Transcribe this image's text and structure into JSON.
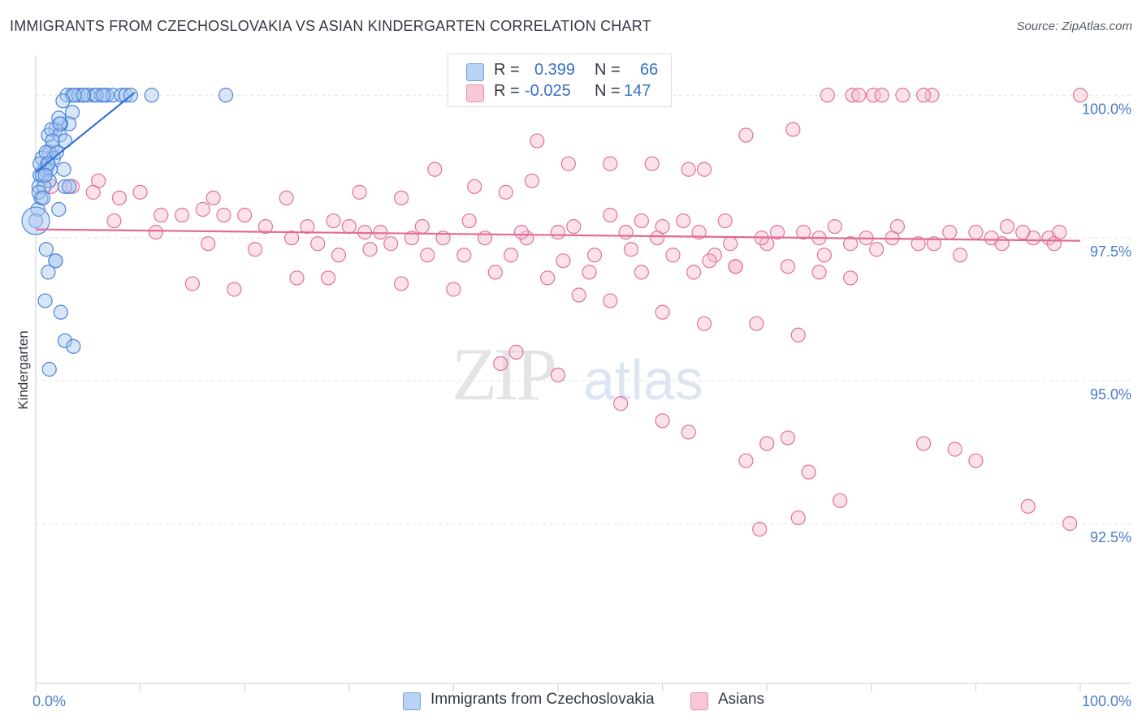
{
  "title": "IMMIGRANTS FROM CZECHOSLOVAKIA VS ASIAN KINDERGARTEN CORRELATION CHART",
  "source": "Source: ZipAtlas.com",
  "watermark": {
    "zip": "ZIP",
    "atlas": "atlas"
  },
  "legend": {
    "r_label": "R =",
    "n_label": "N =",
    "rows": [
      {
        "r": "0.399",
        "n": "66"
      },
      {
        "r": "-0.025",
        "n": "147"
      }
    ]
  },
  "chart_data": {
    "type": "scatter",
    "title": "IMMIGRANTS FROM CZECHOSLOVAKIA VS ASIAN KINDERGARTEN CORRELATION CHART",
    "xlabel": "",
    "ylabel": "Kindergarten",
    "xlim": [
      0,
      100
    ],
    "ylim": [
      89.7,
      100.7
    ],
    "x_tick_labels": [
      {
        "value": 0,
        "label": "0.0%"
      },
      {
        "value": 100,
        "label": "100.0%"
      }
    ],
    "y_ticks": [
      {
        "value": 100,
        "label": "100.0%"
      },
      {
        "value": 97.5,
        "label": "97.5%"
      },
      {
        "value": 95,
        "label": "95.0%"
      },
      {
        "value": 92.5,
        "label": "92.5%"
      }
    ],
    "x_minor_ticks": [
      0,
      10,
      20,
      30,
      40,
      50,
      60,
      70,
      80,
      90,
      100
    ],
    "grid": true,
    "colors": {
      "blue": "#4a84d8",
      "blue_fill": "#a9c8f0",
      "pink": "#e0729a",
      "pink_fill": "#f6bdd0",
      "trend_blue": "#3173d6",
      "trend_pink": "#e36a96",
      "grid": "#dde1e6",
      "axis_text": "#4a7cc9"
    },
    "series": [
      {
        "name": "Immigrants from Czechoslovakia",
        "r": 0.399,
        "n": 66,
        "trend": {
          "x": [
            0,
            9.5
          ],
          "y": [
            98.65,
            100.05
          ]
        },
        "points": [
          [
            3.0,
            100.0
          ],
          [
            3.5,
            100.0
          ],
          [
            4.1,
            100.0
          ],
          [
            4.5,
            100.0
          ],
          [
            5.0,
            100.0
          ],
          [
            5.6,
            100.0
          ],
          [
            6.3,
            100.0
          ],
          [
            6.8,
            100.0
          ],
          [
            7.4,
            100.0
          ],
          [
            8.2,
            100.0
          ],
          [
            8.6,
            100.0
          ],
          [
            9.1,
            100.0
          ],
          [
            11.1,
            100.0
          ],
          [
            18.2,
            100.0
          ],
          [
            5.8,
            100.0
          ],
          [
            6.5,
            100.0
          ],
          [
            4.6,
            100.0
          ],
          [
            3.7,
            100.0
          ],
          [
            2.6,
            99.9
          ],
          [
            3.5,
            99.7
          ],
          [
            3.2,
            99.5
          ],
          [
            2.4,
            99.5
          ],
          [
            1.9,
            99.4
          ],
          [
            1.2,
            99.3
          ],
          [
            1.5,
            99.4
          ],
          [
            2.3,
            99.3
          ],
          [
            2.8,
            99.2
          ],
          [
            1.6,
            99.1
          ],
          [
            1.3,
            99.0
          ],
          [
            0.6,
            98.9
          ],
          [
            1.1,
            98.8
          ],
          [
            0.8,
            98.7
          ],
          [
            0.4,
            98.6
          ],
          [
            0.3,
            98.4
          ],
          [
            1.0,
            98.7
          ],
          [
            2.7,
            98.7
          ],
          [
            2.8,
            98.4
          ],
          [
            0.5,
            98.2
          ],
          [
            0.2,
            98.0
          ],
          [
            0.0,
            97.8
          ],
          [
            2.2,
            98.0
          ],
          [
            1.0,
            97.3
          ],
          [
            1.9,
            97.1
          ],
          [
            1.2,
            96.9
          ],
          [
            1.9,
            97.1
          ],
          [
            0.9,
            96.4
          ],
          [
            2.4,
            96.2
          ],
          [
            2.8,
            95.7
          ],
          [
            3.6,
            95.6
          ],
          [
            1.3,
            95.2
          ],
          [
            0.6,
            98.6
          ],
          [
            1.4,
            98.7
          ],
          [
            1.7,
            98.9
          ],
          [
            2.2,
            99.6
          ],
          [
            1.0,
            99.0
          ],
          [
            0.4,
            98.8
          ],
          [
            2.3,
            99.5
          ],
          [
            1.3,
            98.5
          ],
          [
            0.8,
            98.4
          ],
          [
            3.2,
            98.4
          ],
          [
            2.0,
            99.0
          ],
          [
            1.6,
            99.2
          ],
          [
            0.3,
            98.3
          ],
          [
            1.2,
            98.8
          ],
          [
            0.9,
            98.6
          ],
          [
            0.7,
            98.2
          ]
        ]
      },
      {
        "name": "Asians",
        "r": -0.025,
        "n": 147,
        "trend": {
          "x": [
            0,
            100
          ],
          "y": [
            97.65,
            97.45
          ]
        },
        "points": [
          [
            75.8,
            100.0
          ],
          [
            78.2,
            100.0
          ],
          [
            80.2,
            100.0
          ],
          [
            81.0,
            100.0
          ],
          [
            83.0,
            100.0
          ],
          [
            85.8,
            100.0
          ],
          [
            85.0,
            100.0
          ],
          [
            100.0,
            100.0
          ],
          [
            78.8,
            100.0
          ],
          [
            72.5,
            99.4
          ],
          [
            68.0,
            99.3
          ],
          [
            48.0,
            99.2
          ],
          [
            51.0,
            98.8
          ],
          [
            55.0,
            98.8
          ],
          [
            59.0,
            98.8
          ],
          [
            62.5,
            98.7
          ],
          [
            64.0,
            98.7
          ],
          [
            47.5,
            98.5
          ],
          [
            42.0,
            98.4
          ],
          [
            45.0,
            98.3
          ],
          [
            38.2,
            98.7
          ],
          [
            35.0,
            98.2
          ],
          [
            31.0,
            98.3
          ],
          [
            24.0,
            98.2
          ],
          [
            17.0,
            98.2
          ],
          [
            10.0,
            98.3
          ],
          [
            6.0,
            98.5
          ],
          [
            3.5,
            98.4
          ],
          [
            5.5,
            98.3
          ],
          [
            1.5,
            98.4
          ],
          [
            8.0,
            98.2
          ],
          [
            7.5,
            97.8
          ],
          [
            12.0,
            97.9
          ],
          [
            14.0,
            97.9
          ],
          [
            16.0,
            98.0
          ],
          [
            18.0,
            97.9
          ],
          [
            20.0,
            97.9
          ],
          [
            22.0,
            97.7
          ],
          [
            26.0,
            97.7
          ],
          [
            28.5,
            97.8
          ],
          [
            30.0,
            97.7
          ],
          [
            33.0,
            97.6
          ],
          [
            36.0,
            97.5
          ],
          [
            39.0,
            97.5
          ],
          [
            43.0,
            97.5
          ],
          [
            47.0,
            97.5
          ],
          [
            50.0,
            97.6
          ],
          [
            55.0,
            97.9
          ],
          [
            58.0,
            97.8
          ],
          [
            60.0,
            97.7
          ],
          [
            62.0,
            97.8
          ],
          [
            66.0,
            97.8
          ],
          [
            71.0,
            97.6
          ],
          [
            75.0,
            97.5
          ],
          [
            78.0,
            97.4
          ],
          [
            82.0,
            97.5
          ],
          [
            86.0,
            97.4
          ],
          [
            90.0,
            97.6
          ],
          [
            93.0,
            97.7
          ],
          [
            97.0,
            97.5
          ],
          [
            57.0,
            97.3
          ],
          [
            65.0,
            97.2
          ],
          [
            67.0,
            97.0
          ],
          [
            72.0,
            97.0
          ],
          [
            75.0,
            96.9
          ],
          [
            78.0,
            96.8
          ],
          [
            52.0,
            96.5
          ],
          [
            55.0,
            96.4
          ],
          [
            60.0,
            96.2
          ],
          [
            64.0,
            96.0
          ],
          [
            69.0,
            96.0
          ],
          [
            73.0,
            95.8
          ],
          [
            44.5,
            95.3
          ],
          [
            46.0,
            95.5
          ],
          [
            50.0,
            95.1
          ],
          [
            56.0,
            94.6
          ],
          [
            60.0,
            94.3
          ],
          [
            62.5,
            94.1
          ],
          [
            68.0,
            93.6
          ],
          [
            70.0,
            93.9
          ],
          [
            72.0,
            94.0
          ],
          [
            74.0,
            93.4
          ],
          [
            77.0,
            92.9
          ],
          [
            73.0,
            92.6
          ],
          [
            69.3,
            92.4
          ],
          [
            85.0,
            93.9
          ],
          [
            88.0,
            93.8
          ],
          [
            90.0,
            93.6
          ],
          [
            95.0,
            92.8
          ],
          [
            99.0,
            92.5
          ],
          [
            15.0,
            96.7
          ],
          [
            19.0,
            96.6
          ],
          [
            25.0,
            96.8
          ],
          [
            28.0,
            96.8
          ],
          [
            35.0,
            96.7
          ],
          [
            40.0,
            96.6
          ],
          [
            44.0,
            96.9
          ],
          [
            49.0,
            96.8
          ],
          [
            53.0,
            96.9
          ],
          [
            58.0,
            96.9
          ],
          [
            63.0,
            96.9
          ],
          [
            67.0,
            97.0
          ],
          [
            29.0,
            97.2
          ],
          [
            32.0,
            97.3
          ],
          [
            37.5,
            97.2
          ],
          [
            41.0,
            97.2
          ],
          [
            45.5,
            97.2
          ],
          [
            50.5,
            97.1
          ],
          [
            53.5,
            97.2
          ],
          [
            61.0,
            97.2
          ],
          [
            64.5,
            97.1
          ],
          [
            70.0,
            97.4
          ],
          [
            75.5,
            97.2
          ],
          [
            80.5,
            97.3
          ],
          [
            84.5,
            97.4
          ],
          [
            88.5,
            97.2
          ],
          [
            92.5,
            97.4
          ],
          [
            95.5,
            97.5
          ],
          [
            98.0,
            97.6
          ],
          [
            11.5,
            97.6
          ],
          [
            16.5,
            97.4
          ],
          [
            21.0,
            97.3
          ],
          [
            24.5,
            97.5
          ],
          [
            27.0,
            97.4
          ],
          [
            31.5,
            97.6
          ],
          [
            34.0,
            97.4
          ],
          [
            37.0,
            97.7
          ],
          [
            41.5,
            97.8
          ],
          [
            46.5,
            97.6
          ],
          [
            51.5,
            97.7
          ],
          [
            56.5,
            97.6
          ],
          [
            59.5,
            97.5
          ],
          [
            63.5,
            97.6
          ],
          [
            66.5,
            97.4
          ],
          [
            69.5,
            97.5
          ],
          [
            73.5,
            97.6
          ],
          [
            76.5,
            97.7
          ],
          [
            79.5,
            97.5
          ],
          [
            82.5,
            97.7
          ],
          [
            87.5,
            97.6
          ],
          [
            91.5,
            97.5
          ],
          [
            94.5,
            97.6
          ],
          [
            97.5,
            97.4
          ]
        ]
      }
    ]
  },
  "bottom_legend": [
    {
      "label": "Immigrants from Czechoslovakia"
    },
    {
      "label": "Asians"
    }
  ]
}
